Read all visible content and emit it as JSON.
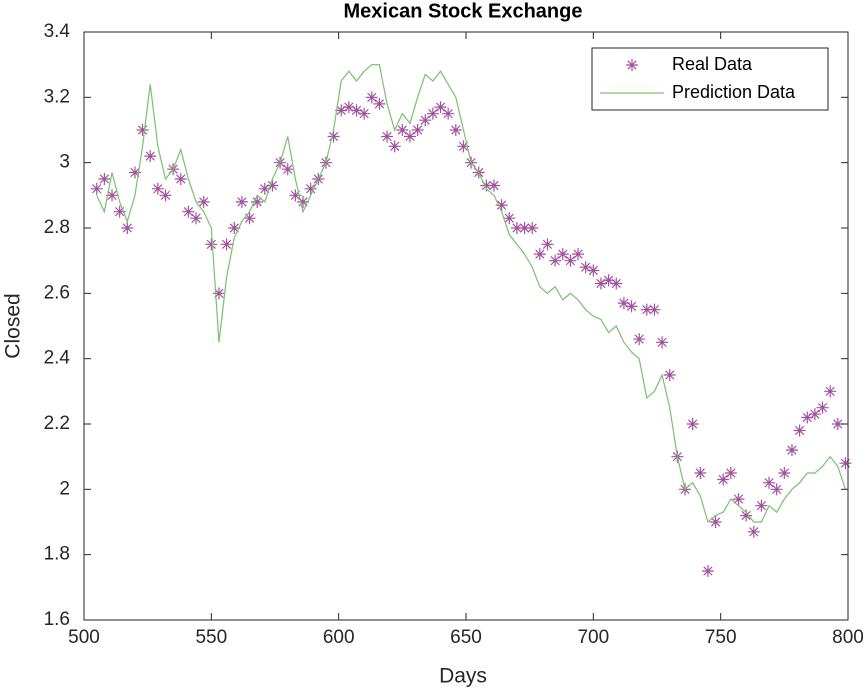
{
  "chart_data": {
    "type": "line",
    "title": "Mexican Stock Exchange",
    "x_label": "Days",
    "y_label": "Closed",
    "x": [
      505,
      508,
      511,
      514,
      517,
      520,
      523,
      526,
      529,
      532,
      535,
      538,
      541,
      544,
      547,
      550,
      553,
      556,
      559,
      562,
      565,
      568,
      571,
      574,
      577,
      580,
      583,
      586,
      589,
      592,
      595,
      598,
      601,
      604,
      607,
      610,
      613,
      616,
      619,
      622,
      625,
      628,
      631,
      634,
      637,
      640,
      643,
      646,
      649,
      652,
      655,
      658,
      661,
      664,
      667,
      670,
      673,
      676,
      679,
      682,
      685,
      688,
      691,
      694,
      697,
      700,
      703,
      706,
      709,
      712,
      715,
      718,
      721,
      724,
      727,
      730,
      733,
      736,
      739,
      742,
      745,
      748,
      751,
      754,
      757,
      760,
      763,
      766,
      769,
      772,
      775,
      778,
      781,
      784,
      787,
      790,
      793,
      796,
      799
    ],
    "series": [
      {
        "name": "Real Data",
        "color": "#a3519f",
        "marker": "asterisk",
        "line": false,
        "values": [
          2.92,
          2.95,
          2.9,
          2.85,
          2.8,
          2.97,
          3.1,
          3.02,
          2.92,
          2.9,
          2.98,
          2.95,
          2.85,
          2.83,
          2.88,
          2.75,
          2.6,
          2.75,
          2.8,
          2.88,
          2.83,
          2.88,
          2.92,
          2.93,
          3.0,
          2.98,
          2.9,
          2.88,
          2.92,
          2.95,
          3.0,
          3.08,
          3.16,
          3.17,
          3.16,
          3.15,
          3.2,
          3.18,
          3.08,
          3.05,
          3.1,
          3.08,
          3.1,
          3.13,
          3.15,
          3.17,
          3.15,
          3.1,
          3.05,
          3.0,
          2.97,
          2.93,
          2.93,
          2.87,
          2.83,
          2.8,
          2.8,
          2.8,
          2.72,
          2.75,
          2.7,
          2.72,
          2.7,
          2.72,
          2.68,
          2.67,
          2.63,
          2.64,
          2.63,
          2.57,
          2.56,
          2.46,
          2.55,
          2.55,
          2.45,
          2.35,
          2.1,
          2.0,
          2.2,
          2.05,
          1.75,
          1.9,
          2.03,
          2.05,
          1.97,
          1.92,
          1.87,
          1.95,
          2.02,
          2.0,
          2.05,
          2.12,
          2.18,
          2.22,
          2.23,
          2.25,
          2.3,
          2.2,
          2.08
        ]
      },
      {
        "name": "Prediction Data",
        "color": "#77c26a",
        "marker": "none",
        "line": true,
        "values": [
          2.9,
          2.85,
          2.97,
          2.88,
          2.82,
          2.9,
          3.05,
          3.24,
          3.05,
          2.95,
          2.98,
          3.04,
          2.95,
          2.88,
          2.85,
          2.8,
          2.45,
          2.65,
          2.77,
          2.82,
          2.85,
          2.9,
          2.88,
          2.95,
          3.0,
          3.08,
          2.95,
          2.85,
          2.9,
          2.95,
          3.0,
          3.1,
          3.25,
          3.28,
          3.25,
          3.28,
          3.3,
          3.3,
          3.18,
          3.1,
          3.15,
          3.12,
          3.2,
          3.27,
          3.25,
          3.28,
          3.24,
          3.2,
          3.1,
          3.0,
          2.97,
          2.92,
          2.9,
          2.85,
          2.78,
          2.75,
          2.72,
          2.68,
          2.62,
          2.6,
          2.62,
          2.58,
          2.6,
          2.58,
          2.55,
          2.53,
          2.52,
          2.48,
          2.5,
          2.45,
          2.42,
          2.4,
          2.28,
          2.3,
          2.35,
          2.25,
          2.1,
          2.0,
          2.02,
          1.98,
          1.9,
          1.92,
          1.93,
          1.97,
          1.95,
          1.93,
          1.9,
          1.9,
          1.95,
          1.93,
          1.97,
          2.0,
          2.02,
          2.05,
          2.05,
          2.07,
          2.1,
          2.07,
          2.0
        ]
      }
    ],
    "xlim": [
      500,
      800
    ],
    "xticks": [
      500,
      550,
      600,
      650,
      700,
      750,
      800
    ],
    "ylim": [
      1.6,
      3.4
    ],
    "yticks": [
      1.6,
      1.8,
      2,
      2.2,
      2.4,
      2.6,
      2.8,
      3,
      3.2,
      3.4
    ],
    "grid": false,
    "legend": "upper right"
  }
}
